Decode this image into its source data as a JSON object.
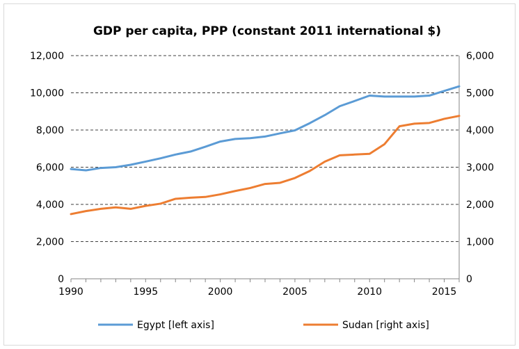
{
  "chart_data": {
    "type": "line",
    "title": "GDP per capita, PPP (constant 2011 international $)",
    "x": [
      1990,
      1991,
      1992,
      1993,
      1994,
      1995,
      1996,
      1997,
      1998,
      1999,
      2000,
      2001,
      2002,
      2003,
      2004,
      2005,
      2006,
      2007,
      2008,
      2009,
      2010,
      2011,
      2012,
      2013,
      2014,
      2015,
      2016
    ],
    "xlim": [
      1990,
      2016
    ],
    "x_ticks": [
      "1990",
      "1995",
      "2000",
      "2005",
      "2010",
      "2015"
    ],
    "series": [
      {
        "name": "Egypt [left axis]",
        "axis": "left",
        "color": "#5b9bd5",
        "values": [
          5900,
          5830,
          5960,
          6000,
          6130,
          6300,
          6480,
          6680,
          6840,
          7100,
          7380,
          7520,
          7560,
          7650,
          7820,
          7980,
          8370,
          8800,
          9280,
          9560,
          9850,
          9800,
          9800,
          9800,
          9850,
          10100,
          10350
        ]
      },
      {
        "name": "Sudan [right axis]",
        "axis": "right",
        "color": "#ed7d31",
        "values": [
          1740,
          1820,
          1880,
          1920,
          1880,
          1960,
          2020,
          2150,
          2180,
          2200,
          2270,
          2360,
          2440,
          2550,
          2580,
          2710,
          2900,
          3150,
          3320,
          3340,
          3360,
          3620,
          4100,
          4170,
          4190,
          4300,
          4380
        ]
      }
    ],
    "y_left": {
      "ylim": [
        0,
        12000
      ],
      "ticks": [
        "0",
        "2,000",
        "4,000",
        "6,000",
        "8,000",
        "10,000",
        "12,000"
      ]
    },
    "y_right": {
      "ylim": [
        0,
        6000
      ],
      "ticks": [
        "0",
        "1,000",
        "2,000",
        "3,000",
        "4,000",
        "5,000",
        "6,000"
      ]
    },
    "grid": "horizontal dashed",
    "legend": "bottom"
  }
}
